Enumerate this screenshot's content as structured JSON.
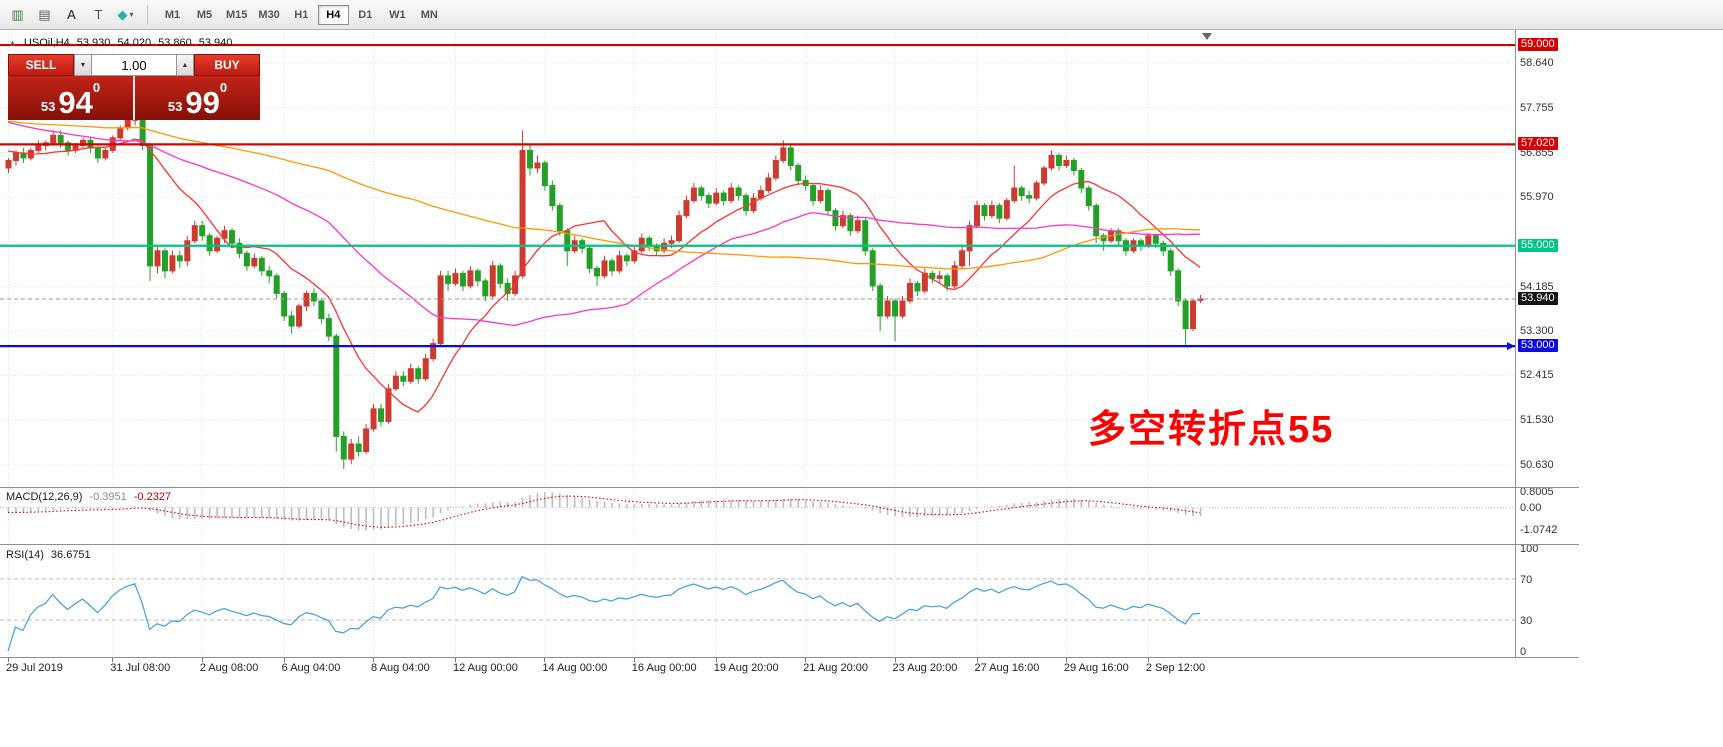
{
  "toolbar": {
    "icons": [
      {
        "name": "new-chart-icon",
        "glyph": "▥",
        "color": "#3a7d3a"
      },
      {
        "name": "profiles-icon",
        "glyph": "▤",
        "color": "#5a5a5a"
      },
      {
        "name": "annotation-a-icon",
        "glyph": "A",
        "color": "#1a1a1a"
      },
      {
        "name": "textbox-icon",
        "glyph": "T",
        "color": "#555555"
      },
      {
        "name": "objects-icon",
        "glyph": "◆",
        "color": "#2aacac",
        "dropdown": true
      }
    ],
    "timeframes": [
      {
        "label": "M1"
      },
      {
        "label": "M5"
      },
      {
        "label": "M15"
      },
      {
        "label": "M30"
      },
      {
        "label": "H1"
      },
      {
        "label": "H4",
        "active": true
      },
      {
        "label": "D1"
      },
      {
        "label": "W1"
      },
      {
        "label": "MN"
      }
    ]
  },
  "chart": {
    "symbol_period": "USOil,H4",
    "open": "53.930",
    "high": "54.020",
    "low": "53.860",
    "close": "53.940"
  },
  "trade_panel": {
    "sell_label": "SELL",
    "buy_label": "BUY",
    "volume": "1.00",
    "sell_price": {
      "whole": "53",
      "pips": "94",
      "point": "0"
    },
    "buy_price": {
      "whole": "53",
      "pips": "99",
      "point": "0"
    }
  },
  "annotation": {
    "text": "多空转折点55",
    "color": "#ff0000"
  },
  "indicators": {
    "macd": {
      "label": "MACD(12,26,9)",
      "value1": "-0.3951",
      "value2": "-0.2327",
      "axis": [
        {
          "label": "0.8005",
          "value": 0.8005
        },
        {
          "label": "0.00",
          "value": 0
        },
        {
          "label": "-1.0742",
          "value": -1.0742
        }
      ]
    },
    "rsi": {
      "label": "RSI(14)",
      "value": "36.6751",
      "levels": [
        70,
        30
      ],
      "axis": [
        {
          "label": "100",
          "value": 100
        },
        {
          "label": "70",
          "value": 70
        },
        {
          "label": "30",
          "value": 30
        },
        {
          "label": "0",
          "value": 0
        }
      ]
    }
  },
  "time_axis": {
    "labels": [
      {
        "text": "29 Jul 2019",
        "bar": 0
      },
      {
        "text": "31 Jul 08:00",
        "bar": 14
      },
      {
        "text": "2 Aug 08:00",
        "bar": 26
      },
      {
        "text": "6 Aug 04:00",
        "bar": 37
      },
      {
        "text": "8 Aug 04:00",
        "bar": 49
      },
      {
        "text": "12 Aug 00:00",
        "bar": 60
      },
      {
        "text": "14 Aug 00:00",
        "bar": 72
      },
      {
        "text": "16 Aug 00:00",
        "bar": 84
      },
      {
        "text": "19 Aug 20:00",
        "bar": 95
      },
      {
        "text": "21 Aug 20:00",
        "bar": 107
      },
      {
        "text": "23 Aug 20:00",
        "bar": 119
      },
      {
        "text": "27 Aug 16:00",
        "bar": 130
      },
      {
        "text": "29 Aug 16:00",
        "bar": 142
      },
      {
        "text": "2 Sep 12:00",
        "bar": 153
      }
    ]
  },
  "chart_data": {
    "type": "candlestick",
    "symbol": "USOil",
    "timeframe": "H4",
    "y_axis_range": [
      50.19,
      59.26
    ],
    "y_ticks": [
      58.64,
      57.755,
      56.855,
      55.97,
      54.185,
      53.3,
      52.415,
      51.53,
      50.63
    ],
    "y_grid": [
      58.64,
      57.755,
      56.855,
      55.97,
      55.085,
      54.185,
      53.3,
      52.415,
      51.53,
      50.63
    ],
    "up_color": "#cc3a30",
    "down_color": "#23a127",
    "hlines": [
      {
        "price": 59.0,
        "label": "59.000",
        "color": "#d60000"
      },
      {
        "price": 57.02,
        "label": "57.020",
        "color": "#d60000"
      },
      {
        "price": 55.0,
        "label": "55.000",
        "color": "#00c38c"
      },
      {
        "price": 53.0,
        "label": "53.000",
        "color": "#0a0adf"
      }
    ],
    "last_price": {
      "value": 53.94,
      "label": "53.940",
      "badge": "#151515"
    },
    "moving_averages": [
      {
        "name": "fast-ma",
        "color": "#ff3333",
        "period": 12
      },
      {
        "name": "medium-ma",
        "color": "#ff33cc",
        "period": 40
      },
      {
        "name": "slow-ma",
        "color": "#ff9900",
        "period": 96
      }
    ],
    "ohlc": [
      [
        56.55,
        56.75,
        56.45,
        56.7
      ],
      [
        56.7,
        56.9,
        56.6,
        56.85
      ],
      [
        56.85,
        56.95,
        56.65,
        56.75
      ],
      [
        56.75,
        56.95,
        56.7,
        56.9
      ],
      [
        56.9,
        57.1,
        56.85,
        57.0
      ],
      [
        57.0,
        57.1,
        56.9,
        57.05
      ],
      [
        57.05,
        57.3,
        57.0,
        57.2
      ],
      [
        57.2,
        57.3,
        56.95,
        57.05
      ],
      [
        57.05,
        57.1,
        56.8,
        56.9
      ],
      [
        56.9,
        57.05,
        56.85,
        57.0
      ],
      [
        57.0,
        57.15,
        56.95,
        57.1
      ],
      [
        57.1,
        57.15,
        56.85,
        56.95
      ],
      [
        56.95,
        57.0,
        56.65,
        56.75
      ],
      [
        56.75,
        56.95,
        56.7,
        56.9
      ],
      [
        56.9,
        57.2,
        56.85,
        57.15
      ],
      [
        57.15,
        57.4,
        57.1,
        57.35
      ],
      [
        57.35,
        57.55,
        57.3,
        57.5
      ],
      [
        57.5,
        57.65,
        57.4,
        57.6
      ],
      [
        57.6,
        57.7,
        56.9,
        57.0
      ],
      [
        57.0,
        57.05,
        54.3,
        54.6
      ],
      [
        54.6,
        55.0,
        54.45,
        54.9
      ],
      [
        54.9,
        54.95,
        54.35,
        54.5
      ],
      [
        54.5,
        54.9,
        54.45,
        54.8
      ],
      [
        54.8,
        54.9,
        54.55,
        54.7
      ],
      [
        54.7,
        55.2,
        54.6,
        55.1
      ],
      [
        55.1,
        55.5,
        55.05,
        55.4
      ],
      [
        55.4,
        55.5,
        55.1,
        55.2
      ],
      [
        55.2,
        55.25,
        54.8,
        54.9
      ],
      [
        54.9,
        55.2,
        54.85,
        55.15
      ],
      [
        55.15,
        55.4,
        55.05,
        55.3
      ],
      [
        55.3,
        55.35,
        54.95,
        55.05
      ],
      [
        55.05,
        55.15,
        54.75,
        54.85
      ],
      [
        54.85,
        54.9,
        54.5,
        54.6
      ],
      [
        54.6,
        54.85,
        54.55,
        54.75
      ],
      [
        54.75,
        54.8,
        54.4,
        54.5
      ],
      [
        54.5,
        54.6,
        54.25,
        54.4
      ],
      [
        54.4,
        54.45,
        53.95,
        54.05
      ],
      [
        54.05,
        54.1,
        53.5,
        53.6
      ],
      [
        53.6,
        53.7,
        53.25,
        53.4
      ],
      [
        53.4,
        53.85,
        53.35,
        53.8
      ],
      [
        53.8,
        54.1,
        53.7,
        54.05
      ],
      [
        54.05,
        54.15,
        53.8,
        53.9
      ],
      [
        53.9,
        53.95,
        53.45,
        53.55
      ],
      [
        53.55,
        53.65,
        53.1,
        53.2
      ],
      [
        53.2,
        53.25,
        50.9,
        51.2
      ],
      [
        51.2,
        51.3,
        50.55,
        50.75
      ],
      [
        50.75,
        51.15,
        50.65,
        51.05
      ],
      [
        51.05,
        51.2,
        50.8,
        50.9
      ],
      [
        50.9,
        51.45,
        50.85,
        51.35
      ],
      [
        51.35,
        51.85,
        51.3,
        51.75
      ],
      [
        51.75,
        51.85,
        51.4,
        51.5
      ],
      [
        51.5,
        52.25,
        51.45,
        52.15
      ],
      [
        52.15,
        52.5,
        52.1,
        52.4
      ],
      [
        52.4,
        52.5,
        52.2,
        52.3
      ],
      [
        52.3,
        52.65,
        52.25,
        52.55
      ],
      [
        52.55,
        52.6,
        52.25,
        52.35
      ],
      [
        52.35,
        52.85,
        52.3,
        52.75
      ],
      [
        52.75,
        53.15,
        52.7,
        53.05
      ],
      [
        53.05,
        54.5,
        53.0,
        54.4
      ],
      [
        54.4,
        54.5,
        54.1,
        54.25
      ],
      [
        54.25,
        54.55,
        54.2,
        54.45
      ],
      [
        54.45,
        54.5,
        54.1,
        54.2
      ],
      [
        54.2,
        54.6,
        54.15,
        54.5
      ],
      [
        54.5,
        54.55,
        54.2,
        54.3
      ],
      [
        54.3,
        54.35,
        53.9,
        54.0
      ],
      [
        54.0,
        54.7,
        53.95,
        54.6
      ],
      [
        54.6,
        54.65,
        54.15,
        54.25
      ],
      [
        54.25,
        54.35,
        53.9,
        54.05
      ],
      [
        54.05,
        54.5,
        54.0,
        54.4
      ],
      [
        54.4,
        57.3,
        54.35,
        56.9
      ],
      [
        56.9,
        57.0,
        56.4,
        56.55
      ],
      [
        56.55,
        56.8,
        56.45,
        56.65
      ],
      [
        56.65,
        56.7,
        56.1,
        56.2
      ],
      [
        56.2,
        56.3,
        55.7,
        55.8
      ],
      [
        55.8,
        55.85,
        55.2,
        55.3
      ],
      [
        55.3,
        55.35,
        54.6,
        54.9
      ],
      [
        54.9,
        55.2,
        54.85,
        55.1
      ],
      [
        55.1,
        55.15,
        54.85,
        54.95
      ],
      [
        54.95,
        55.0,
        54.45,
        54.55
      ],
      [
        54.55,
        54.6,
        54.2,
        54.4
      ],
      [
        54.4,
        54.8,
        54.35,
        54.7
      ],
      [
        54.7,
        54.75,
        54.4,
        54.5
      ],
      [
        54.5,
        54.9,
        54.45,
        54.8
      ],
      [
        54.8,
        54.85,
        54.6,
        54.7
      ],
      [
        54.7,
        55.0,
        54.65,
        54.9
      ],
      [
        54.9,
        55.25,
        54.85,
        55.15
      ],
      [
        55.15,
        55.2,
        54.9,
        55.0
      ],
      [
        55.0,
        55.05,
        54.8,
        54.9
      ],
      [
        54.9,
        55.15,
        54.85,
        55.05
      ],
      [
        55.05,
        55.2,
        54.95,
        55.1
      ],
      [
        55.1,
        55.7,
        55.05,
        55.6
      ],
      [
        55.6,
        56.0,
        55.55,
        55.9
      ],
      [
        55.9,
        56.25,
        55.85,
        56.15
      ],
      [
        56.15,
        56.2,
        55.9,
        56.0
      ],
      [
        56.0,
        56.05,
        55.75,
        55.85
      ],
      [
        55.85,
        56.15,
        55.8,
        56.05
      ],
      [
        56.05,
        56.1,
        55.8,
        55.9
      ],
      [
        55.9,
        56.25,
        55.85,
        56.15
      ],
      [
        56.15,
        56.2,
        55.9,
        56.0
      ],
      [
        56.0,
        56.05,
        55.6,
        55.7
      ],
      [
        55.7,
        56.05,
        55.65,
        55.95
      ],
      [
        55.95,
        56.2,
        55.9,
        56.1
      ],
      [
        56.1,
        56.45,
        56.05,
        56.35
      ],
      [
        56.35,
        56.8,
        56.3,
        56.7
      ],
      [
        56.7,
        57.1,
        56.65,
        56.95
      ],
      [
        56.95,
        57.0,
        56.5,
        56.6
      ],
      [
        56.6,
        56.65,
        56.2,
        56.3
      ],
      [
        56.3,
        56.4,
        56.1,
        56.2
      ],
      [
        56.2,
        56.25,
        55.8,
        55.9
      ],
      [
        55.9,
        56.2,
        55.85,
        56.1
      ],
      [
        56.1,
        56.15,
        55.6,
        55.7
      ],
      [
        55.7,
        55.75,
        55.3,
        55.4
      ],
      [
        55.4,
        55.7,
        55.35,
        55.6
      ],
      [
        55.6,
        55.65,
        55.2,
        55.3
      ],
      [
        55.3,
        55.6,
        55.25,
        55.5
      ],
      [
        55.5,
        55.55,
        54.8,
        54.9
      ],
      [
        54.9,
        54.95,
        54.1,
        54.2
      ],
      [
        54.2,
        54.25,
        53.3,
        53.6
      ],
      [
        53.6,
        54.0,
        53.55,
        53.9
      ],
      [
        53.9,
        53.95,
        53.1,
        53.6
      ],
      [
        53.6,
        54.0,
        53.55,
        53.9
      ],
      [
        53.9,
        54.35,
        53.85,
        54.25
      ],
      [
        54.25,
        54.3,
        54.0,
        54.1
      ],
      [
        54.1,
        54.55,
        54.05,
        54.45
      ],
      [
        54.45,
        54.5,
        54.25,
        54.35
      ],
      [
        54.35,
        54.5,
        54.25,
        54.4
      ],
      [
        54.4,
        54.45,
        54.1,
        54.2
      ],
      [
        54.2,
        54.7,
        54.15,
        54.6
      ],
      [
        54.6,
        55.0,
        54.55,
        54.9
      ],
      [
        54.9,
        55.5,
        54.6,
        55.4
      ],
      [
        55.4,
        55.9,
        55.35,
        55.8
      ],
      [
        55.8,
        55.85,
        55.5,
        55.6
      ],
      [
        55.6,
        55.9,
        55.55,
        55.8
      ],
      [
        55.8,
        55.85,
        55.45,
        55.55
      ],
      [
        55.55,
        55.95,
        55.5,
        55.9
      ],
      [
        55.9,
        56.6,
        55.85,
        56.15
      ],
      [
        56.15,
        56.2,
        55.9,
        56.0
      ],
      [
        56.0,
        56.1,
        55.85,
        55.95
      ],
      [
        55.95,
        56.3,
        55.9,
        56.25
      ],
      [
        56.25,
        56.6,
        56.2,
        56.55
      ],
      [
        56.55,
        56.9,
        56.5,
        56.8
      ],
      [
        56.8,
        56.85,
        56.5,
        56.6
      ],
      [
        56.6,
        56.8,
        56.55,
        56.7
      ],
      [
        56.7,
        56.75,
        56.4,
        56.5
      ],
      [
        56.5,
        56.55,
        56.05,
        56.15
      ],
      [
        56.15,
        56.2,
        55.7,
        55.8
      ],
      [
        55.8,
        55.85,
        55.05,
        55.2
      ],
      [
        55.2,
        55.25,
        54.9,
        55.1
      ],
      [
        55.1,
        55.35,
        55.05,
        55.3
      ],
      [
        55.3,
        55.35,
        55.0,
        55.1
      ],
      [
        55.1,
        55.15,
        54.8,
        54.9
      ],
      [
        54.9,
        55.15,
        54.85,
        55.1
      ],
      [
        55.1,
        55.15,
        54.9,
        55.0
      ],
      [
        55.0,
        55.25,
        54.95,
        55.2
      ],
      [
        55.2,
        55.25,
        54.95,
        55.05
      ],
      [
        55.05,
        55.1,
        54.8,
        54.9
      ],
      [
        54.9,
        54.95,
        54.4,
        54.5
      ],
      [
        54.5,
        54.55,
        53.8,
        53.9
      ],
      [
        53.9,
        53.95,
        52.98,
        53.35
      ],
      [
        53.35,
        53.95,
        53.3,
        53.9
      ],
      [
        53.93,
        54.02,
        53.86,
        53.94
      ]
    ]
  }
}
